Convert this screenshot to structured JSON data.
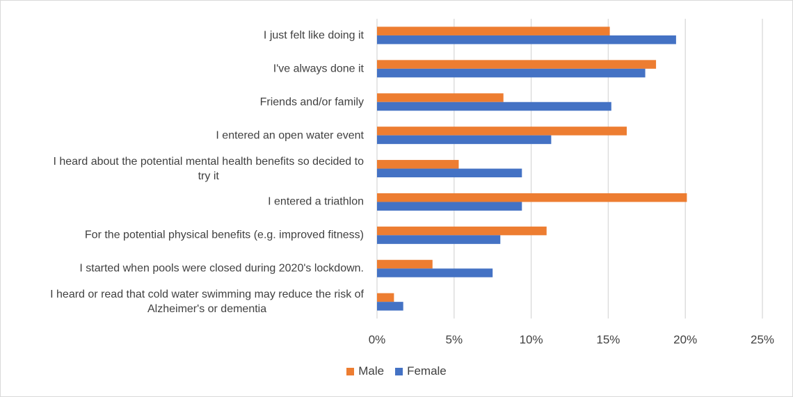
{
  "chart_data": {
    "type": "bar",
    "orientation": "horizontal",
    "categories": [
      [
        "I just felt like doing it"
      ],
      [
        "I've always done it"
      ],
      [
        "Friends and/or family"
      ],
      [
        "I entered an open water event"
      ],
      [
        "I heard about the potential mental health benefits so decided to",
        "try it"
      ],
      [
        "I entered a triathlon"
      ],
      [
        "For the potential physical benefits (e.g. improved fitness)"
      ],
      [
        "I started when pools were closed during 2020's lockdown."
      ],
      [
        "I heard or read that cold water swimming may reduce the risk of",
        "Alzheimer's or dementia"
      ]
    ],
    "series": [
      {
        "name": "Male",
        "color": "#ED7D31",
        "values": [
          15.1,
          18.1,
          8.2,
          16.2,
          5.3,
          20.1,
          11.0,
          3.6,
          1.1
        ]
      },
      {
        "name": "Female",
        "color": "#4472C4",
        "values": [
          19.4,
          17.4,
          15.2,
          11.3,
          9.4,
          9.4,
          8.0,
          7.5,
          1.7
        ]
      }
    ],
    "xlim": [
      0,
      25
    ],
    "xticks": [
      "0%",
      "5%",
      "10%",
      "15%",
      "20%",
      "25%"
    ],
    "grid": true,
    "legend": "bottom"
  }
}
